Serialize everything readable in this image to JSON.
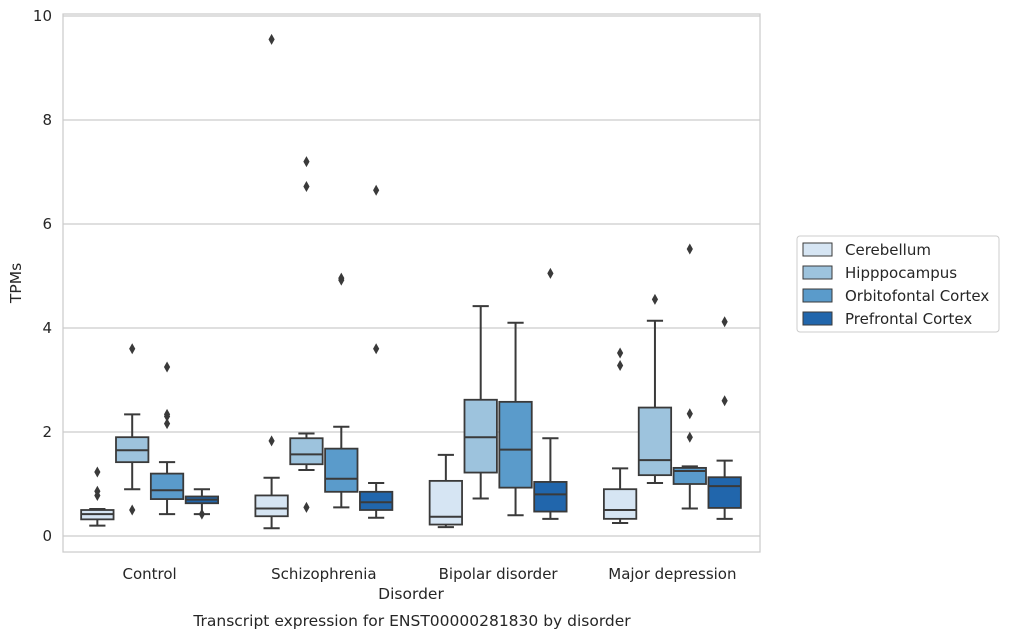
{
  "chart_data": {
    "type": "box",
    "title": "",
    "caption": "Transcript expression for ENST00000281830 by disorder",
    "xlabel": "Disorder",
    "ylabel": "TPMs",
    "ylim": [
      -0.3,
      10.05
    ],
    "yticks": [
      0,
      2,
      4,
      6,
      8,
      10
    ],
    "grid": "horizontal",
    "legend_position": "right",
    "categories": [
      "Control",
      "Schizophrenia",
      "Bipolar disorder",
      "Major depression"
    ],
    "series": [
      {
        "name": "Cerebellum",
        "color": "#d6e5f3",
        "boxes": [
          {
            "whisker_low": 0.2,
            "q1": 0.32,
            "median": 0.42,
            "q3": 0.5,
            "whisker_high": 0.52,
            "outliers": [
              0.78,
              0.86,
              1.23
            ]
          },
          {
            "whisker_low": 0.15,
            "q1": 0.38,
            "median": 0.53,
            "q3": 0.78,
            "whisker_high": 1.12,
            "outliers": [
              1.83,
              9.55
            ]
          },
          {
            "whisker_low": 0.17,
            "q1": 0.22,
            "median": 0.37,
            "q3": 1.06,
            "whisker_high": 1.56,
            "outliers": []
          },
          {
            "whisker_low": 0.25,
            "q1": 0.33,
            "median": 0.5,
            "q3": 0.9,
            "whisker_high": 1.3,
            "outliers": [
              3.28,
              3.52
            ]
          }
        ]
      },
      {
        "name": "Hipppocampus",
        "color": "#9dc3dd",
        "boxes": [
          {
            "whisker_low": 0.9,
            "q1": 1.42,
            "median": 1.65,
            "q3": 1.9,
            "whisker_high": 2.34,
            "outliers": [
              0.5,
              3.6
            ]
          },
          {
            "whisker_low": 1.27,
            "q1": 1.38,
            "median": 1.57,
            "q3": 1.88,
            "whisker_high": 1.97,
            "outliers": [
              0.55,
              6.72,
              7.2
            ]
          },
          {
            "whisker_low": 0.72,
            "q1": 1.22,
            "median": 1.9,
            "q3": 2.62,
            "whisker_high": 4.42,
            "outliers": []
          },
          {
            "whisker_low": 1.02,
            "q1": 1.17,
            "median": 1.46,
            "q3": 2.47,
            "whisker_high": 4.14,
            "outliers": [
              4.55
            ]
          }
        ]
      },
      {
        "name": "Orbitofontal Cortex",
        "color": "#5a9bcb",
        "boxes": [
          {
            "whisker_low": 0.42,
            "q1": 0.71,
            "median": 0.88,
            "q3": 1.2,
            "whisker_high": 1.42,
            "outliers": [
              2.16,
              2.3,
              2.34,
              3.25
            ]
          },
          {
            "whisker_low": 0.55,
            "q1": 0.85,
            "median": 1.1,
            "q3": 1.68,
            "whisker_high": 2.1,
            "outliers": [
              4.92,
              4.96
            ]
          },
          {
            "whisker_low": 0.4,
            "q1": 0.93,
            "median": 1.66,
            "q3": 2.58,
            "whisker_high": 4.1,
            "outliers": []
          },
          {
            "whisker_low": 0.53,
            "q1": 1.0,
            "median": 1.25,
            "q3": 1.31,
            "whisker_high": 1.34,
            "outliers": [
              1.9,
              2.35,
              5.52
            ]
          }
        ]
      },
      {
        "name": "Prefrontal Cortex",
        "color": "#2166ac",
        "boxes": [
          {
            "whisker_low": 0.42,
            "q1": 0.63,
            "median": 0.7,
            "q3": 0.76,
            "whisker_high": 0.9,
            "outliers": [
              0.42
            ]
          },
          {
            "whisker_low": 0.35,
            "q1": 0.5,
            "median": 0.65,
            "q3": 0.85,
            "whisker_high": 1.02,
            "outliers": [
              3.6,
              6.65
            ]
          },
          {
            "whisker_low": 0.33,
            "q1": 0.47,
            "median": 0.8,
            "q3": 1.04,
            "whisker_high": 1.88,
            "outliers": [
              5.05
            ]
          },
          {
            "whisker_low": 0.33,
            "q1": 0.54,
            "median": 0.96,
            "q3": 1.13,
            "whisker_high": 1.45,
            "outliers": [
              2.6,
              4.12
            ]
          }
        ]
      }
    ]
  }
}
